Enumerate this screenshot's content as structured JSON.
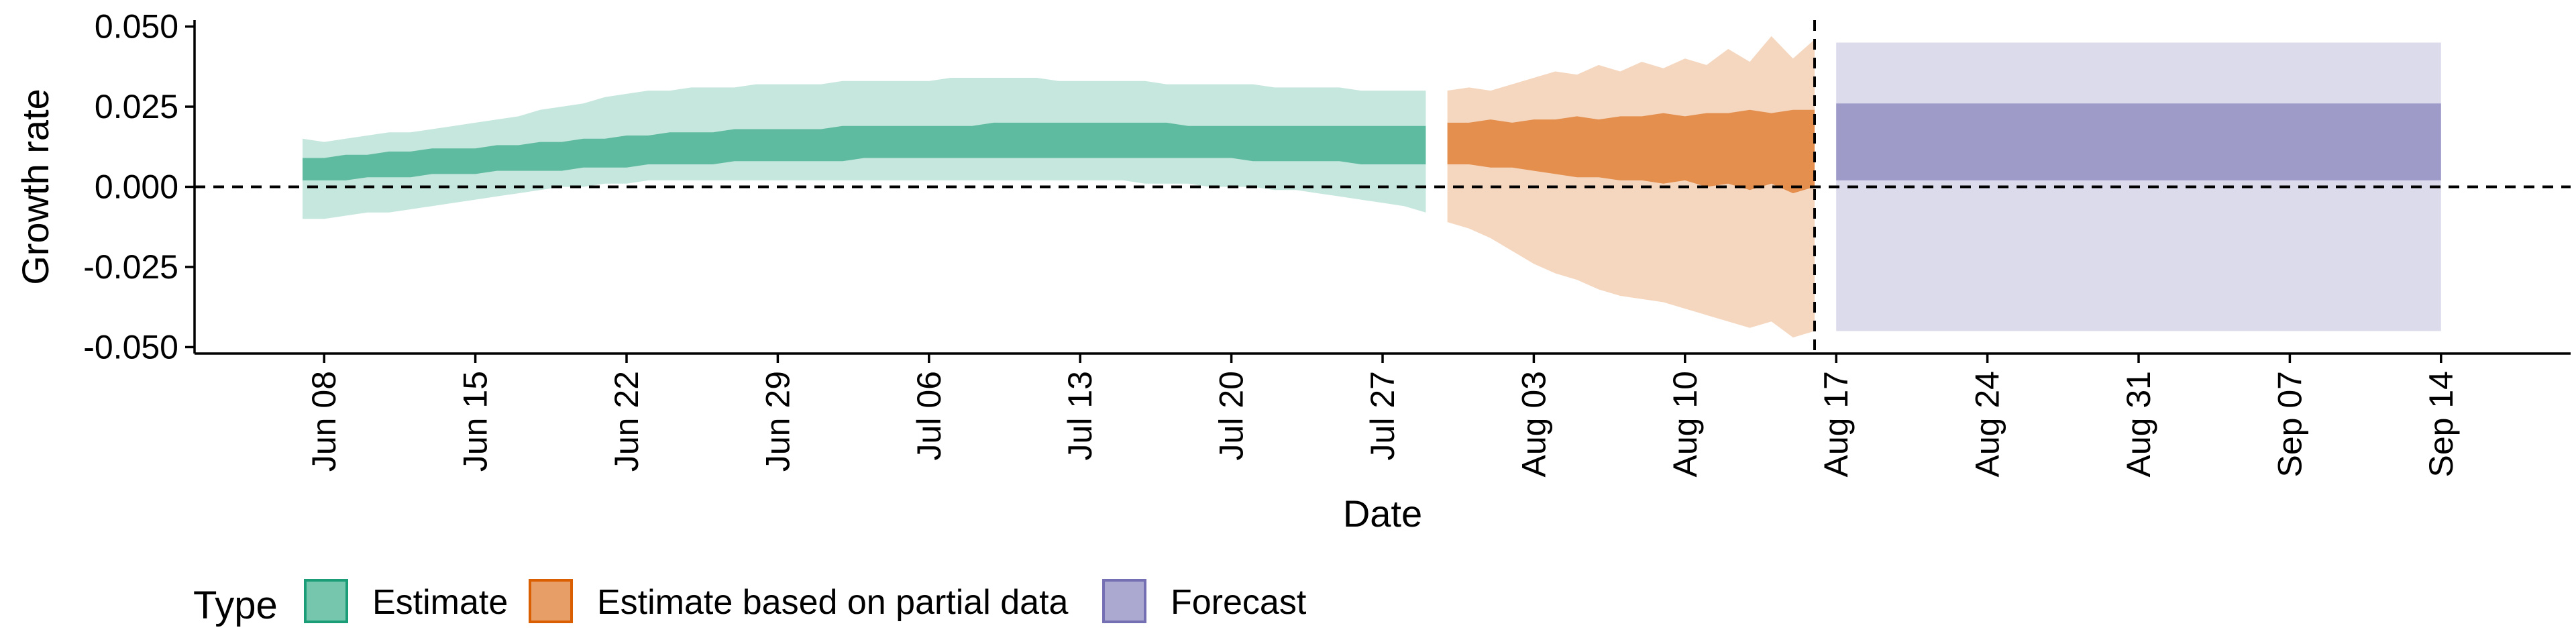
{
  "chart_data": {
    "type": "area",
    "title": "",
    "xlabel": "Date",
    "ylabel": "Growth rate",
    "ylim": [
      -0.052,
      0.052
    ],
    "y_ticks": [
      {
        "value": 0.05,
        "label": "0.050"
      },
      {
        "value": 0.025,
        "label": "0.025"
      },
      {
        "value": 0.0,
        "label": "0.000"
      },
      {
        "value": -0.025,
        "label": "-0.025"
      },
      {
        "value": -0.05,
        "label": "-0.050"
      }
    ],
    "x_range": [
      "2020-06-02",
      "2020-09-20"
    ],
    "x_ticks": [
      {
        "date": "2020-06-08",
        "label": "Jun 08"
      },
      {
        "date": "2020-06-15",
        "label": "Jun 15"
      },
      {
        "date": "2020-06-22",
        "label": "Jun 22"
      },
      {
        "date": "2020-06-29",
        "label": "Jun 29"
      },
      {
        "date": "2020-07-06",
        "label": "Jul 06"
      },
      {
        "date": "2020-07-13",
        "label": "Jul 13"
      },
      {
        "date": "2020-07-20",
        "label": "Jul 20"
      },
      {
        "date": "2020-07-27",
        "label": "Jul 27"
      },
      {
        "date": "2020-08-03",
        "label": "Aug 03"
      },
      {
        "date": "2020-08-10",
        "label": "Aug 10"
      },
      {
        "date": "2020-08-17",
        "label": "Aug 17"
      },
      {
        "date": "2020-08-24",
        "label": "Aug 24"
      },
      {
        "date": "2020-08-31",
        "label": "Aug 31"
      },
      {
        "date": "2020-09-07",
        "label": "Sep 07"
      },
      {
        "date": "2020-09-14",
        "label": "Sep 14"
      }
    ],
    "reference_lines": [
      {
        "axis": "y",
        "value": 0.0,
        "style": "dashed"
      },
      {
        "axis": "x",
        "date": "2020-08-16",
        "style": "dashed"
      }
    ],
    "grid": false,
    "legend": {
      "title": "Type",
      "placement": "bottom-left"
    },
    "series": [
      {
        "name": "Estimate",
        "color": "#1b9e77",
        "dates": [
          "2020-06-07",
          "2020-06-08",
          "2020-06-09",
          "2020-06-10",
          "2020-06-11",
          "2020-06-12",
          "2020-06-13",
          "2020-06-14",
          "2020-06-15",
          "2020-06-16",
          "2020-06-17",
          "2020-06-18",
          "2020-06-19",
          "2020-06-20",
          "2020-06-21",
          "2020-06-22",
          "2020-06-23",
          "2020-06-24",
          "2020-06-25",
          "2020-06-26",
          "2020-06-27",
          "2020-06-28",
          "2020-06-29",
          "2020-06-30",
          "2020-07-01",
          "2020-07-02",
          "2020-07-03",
          "2020-07-04",
          "2020-07-05",
          "2020-07-06",
          "2020-07-07",
          "2020-07-08",
          "2020-07-09",
          "2020-07-10",
          "2020-07-11",
          "2020-07-12",
          "2020-07-13",
          "2020-07-14",
          "2020-07-15",
          "2020-07-16",
          "2020-07-17",
          "2020-07-18",
          "2020-07-19",
          "2020-07-20",
          "2020-07-21",
          "2020-07-22",
          "2020-07-23",
          "2020-07-24",
          "2020-07-25",
          "2020-07-26",
          "2020-07-27",
          "2020-07-28",
          "2020-07-29"
        ],
        "upper_90": [
          0.015,
          0.014,
          0.015,
          0.016,
          0.017,
          0.017,
          0.018,
          0.019,
          0.02,
          0.021,
          0.022,
          0.024,
          0.025,
          0.026,
          0.028,
          0.029,
          0.03,
          0.03,
          0.031,
          0.031,
          0.031,
          0.032,
          0.032,
          0.032,
          0.032,
          0.033,
          0.033,
          0.033,
          0.033,
          0.033,
          0.034,
          0.034,
          0.034,
          0.034,
          0.034,
          0.033,
          0.033,
          0.033,
          0.033,
          0.033,
          0.032,
          0.032,
          0.032,
          0.032,
          0.032,
          0.031,
          0.031,
          0.031,
          0.031,
          0.03,
          0.03,
          0.03,
          0.03
        ],
        "upper_50": [
          0.009,
          0.009,
          0.01,
          0.01,
          0.011,
          0.011,
          0.012,
          0.012,
          0.012,
          0.013,
          0.013,
          0.014,
          0.014,
          0.015,
          0.015,
          0.016,
          0.016,
          0.017,
          0.017,
          0.017,
          0.018,
          0.018,
          0.018,
          0.018,
          0.018,
          0.019,
          0.019,
          0.019,
          0.019,
          0.019,
          0.019,
          0.019,
          0.02,
          0.02,
          0.02,
          0.02,
          0.02,
          0.02,
          0.02,
          0.02,
          0.02,
          0.019,
          0.019,
          0.019,
          0.019,
          0.019,
          0.019,
          0.019,
          0.019,
          0.019,
          0.019,
          0.019,
          0.019
        ],
        "lower_50": [
          0.002,
          0.002,
          0.002,
          0.003,
          0.003,
          0.003,
          0.004,
          0.004,
          0.004,
          0.005,
          0.005,
          0.005,
          0.005,
          0.006,
          0.006,
          0.006,
          0.007,
          0.007,
          0.007,
          0.007,
          0.008,
          0.008,
          0.008,
          0.008,
          0.008,
          0.008,
          0.009,
          0.009,
          0.009,
          0.009,
          0.009,
          0.009,
          0.009,
          0.009,
          0.009,
          0.009,
          0.009,
          0.009,
          0.009,
          0.009,
          0.009,
          0.009,
          0.009,
          0.009,
          0.008,
          0.008,
          0.008,
          0.008,
          0.008,
          0.007,
          0.007,
          0.007,
          0.007
        ],
        "lower_90": [
          -0.01,
          -0.01,
          -0.009,
          -0.008,
          -0.008,
          -0.007,
          -0.006,
          -0.005,
          -0.004,
          -0.003,
          -0.002,
          -0.001,
          0.0,
          0.0,
          0.001,
          0.001,
          0.002,
          0.002,
          0.002,
          0.002,
          0.002,
          0.002,
          0.002,
          0.002,
          0.002,
          0.002,
          0.002,
          0.002,
          0.002,
          0.002,
          0.002,
          0.002,
          0.002,
          0.002,
          0.002,
          0.002,
          0.002,
          0.002,
          0.002,
          0.001,
          0.001,
          0.001,
          0.0,
          0.0,
          0.0,
          -0.001,
          -0.001,
          -0.002,
          -0.003,
          -0.004,
          -0.005,
          -0.006,
          -0.008
        ]
      },
      {
        "name": "Estimate based on partial data",
        "color": "#d95f02",
        "dates": [
          "2020-07-30",
          "2020-07-31",
          "2020-08-01",
          "2020-08-02",
          "2020-08-03",
          "2020-08-04",
          "2020-08-05",
          "2020-08-06",
          "2020-08-07",
          "2020-08-08",
          "2020-08-09",
          "2020-08-10",
          "2020-08-11",
          "2020-08-12",
          "2020-08-13",
          "2020-08-14",
          "2020-08-15",
          "2020-08-16"
        ],
        "upper_90": [
          0.03,
          0.031,
          0.03,
          0.032,
          0.034,
          0.036,
          0.035,
          0.038,
          0.036,
          0.039,
          0.037,
          0.04,
          0.038,
          0.043,
          0.039,
          0.047,
          0.04,
          0.046
        ],
        "upper_50": [
          0.02,
          0.02,
          0.021,
          0.02,
          0.021,
          0.021,
          0.022,
          0.021,
          0.022,
          0.022,
          0.023,
          0.022,
          0.023,
          0.023,
          0.024,
          0.023,
          0.024,
          0.024
        ],
        "lower_50": [
          0.007,
          0.007,
          0.006,
          0.006,
          0.005,
          0.004,
          0.003,
          0.003,
          0.002,
          0.002,
          0.001,
          0.002,
          0.0,
          0.001,
          -0.001,
          0.001,
          -0.002,
          0.0
        ],
        "lower_90": [
          -0.011,
          -0.013,
          -0.016,
          -0.02,
          -0.024,
          -0.027,
          -0.029,
          -0.032,
          -0.034,
          -0.035,
          -0.036,
          -0.038,
          -0.04,
          -0.042,
          -0.044,
          -0.042,
          -0.047,
          -0.045
        ]
      },
      {
        "name": "Forecast",
        "color": "#7570b3",
        "dates": [
          "2020-08-17",
          "2020-09-14"
        ],
        "upper_90": [
          0.045,
          0.045
        ],
        "upper_50": [
          0.026,
          0.026
        ],
        "lower_50": [
          0.002,
          0.002
        ],
        "lower_90": [
          -0.045,
          -0.045
        ]
      }
    ]
  }
}
